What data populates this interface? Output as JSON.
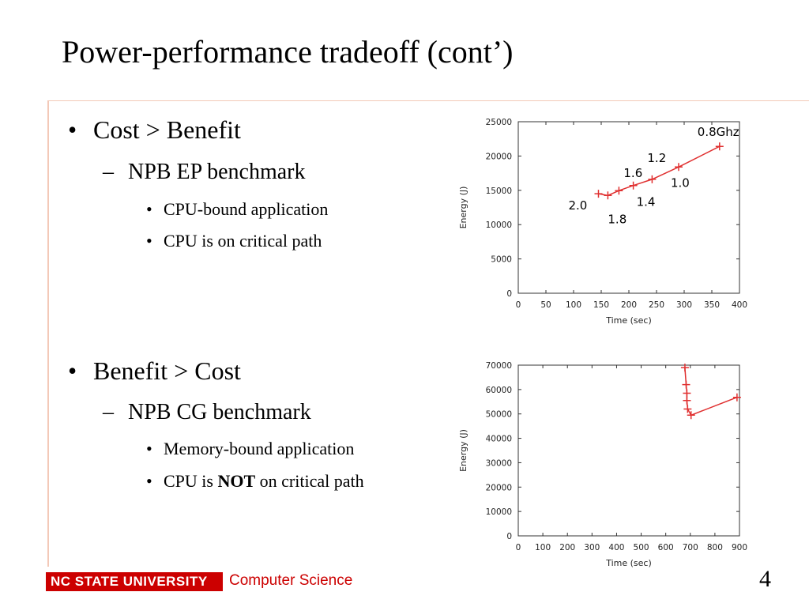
{
  "slide": {
    "title": "Power-performance tradeoff (cont’)",
    "page_number": "4"
  },
  "section1": {
    "bullet": "Cost > Benefit",
    "sub": "NPB EP benchmark",
    "items": [
      "CPU-bound application",
      "CPU is on critical path"
    ]
  },
  "section2": {
    "bullet": "Benefit > Cost",
    "sub": "NPB CG benchmark",
    "item1": "Memory-bound application",
    "item2_pre": "CPU is ",
    "item2_bold": "NOT",
    "item2_post": " on critical path"
  },
  "footer": {
    "logo_text": "NC STATE UNIVERSITY",
    "dept": "Computer Science"
  },
  "colors": {
    "series": "#e03030",
    "brand_red": "#cc0000",
    "rule": "#f3c9b8"
  },
  "chart_data": [
    {
      "type": "line",
      "xlabel": "Time (sec)",
      "ylabel": "Energy (J)",
      "xlim": [
        0,
        400
      ],
      "ylim": [
        0,
        25000
      ],
      "xticks": [
        "0",
        "50",
        "100",
        "150",
        "200",
        "250",
        "300",
        "350",
        "400"
      ],
      "yticks": [
        "0",
        "5000",
        "10000",
        "15000",
        "20000",
        "25000"
      ],
      "points": [
        {
          "x": 145,
          "y": 14500,
          "label": "2.0"
        },
        {
          "x": 162,
          "y": 14250,
          "label": "1.8"
        },
        {
          "x": 182,
          "y": 14950,
          "label": "1.6"
        },
        {
          "x": 208,
          "y": 15700,
          "label": "1.4"
        },
        {
          "x": 242,
          "y": 16600,
          "label": "1.2"
        },
        {
          "x": 290,
          "y": 18400,
          "label": "1.0"
        },
        {
          "x": 364,
          "y": 21400,
          "label": "0.8Ghz"
        }
      ]
    },
    {
      "type": "line",
      "xlabel": "Time (sec)",
      "ylabel": "Energy (J)",
      "xlim": [
        0,
        900
      ],
      "ylim": [
        0,
        70000
      ],
      "xticks": [
        "0",
        "100",
        "200",
        "300",
        "400",
        "500",
        "600",
        "700",
        "800",
        "900"
      ],
      "yticks": [
        "0",
        "10000",
        "20000",
        "30000",
        "40000",
        "50000",
        "60000",
        "70000"
      ],
      "points": [
        {
          "x": 678,
          "y": 69000
        },
        {
          "x": 683,
          "y": 62000
        },
        {
          "x": 686,
          "y": 58500
        },
        {
          "x": 686,
          "y": 55500
        },
        {
          "x": 689,
          "y": 52000
        },
        {
          "x": 703,
          "y": 49500
        },
        {
          "x": 890,
          "y": 56800
        }
      ]
    }
  ]
}
